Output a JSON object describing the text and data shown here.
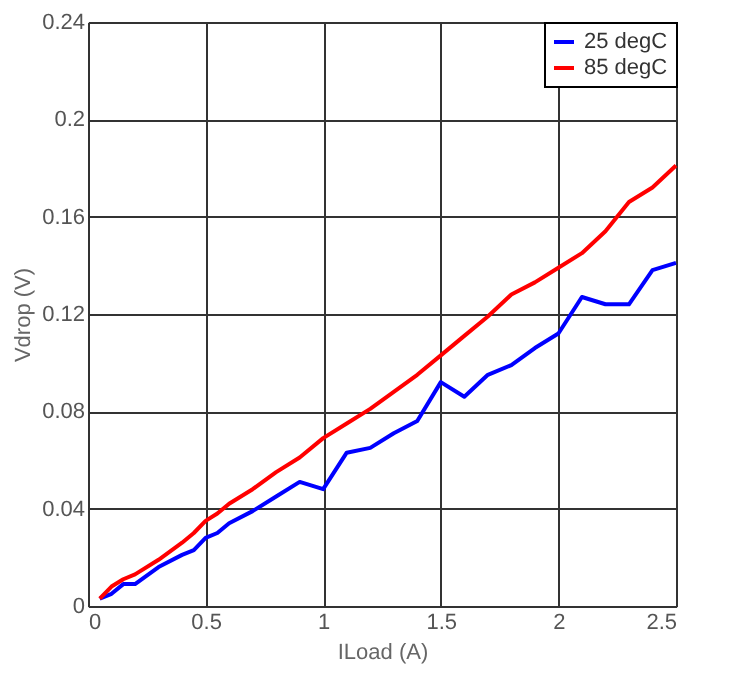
{
  "chart_data": {
    "type": "line",
    "xlabel": "ILoad (A)",
    "ylabel": "Vdrop (V)",
    "x": [
      0.05,
      0.1,
      0.15,
      0.2,
      0.3,
      0.4,
      0.45,
      0.5,
      0.55,
      0.6,
      0.7,
      0.8,
      0.9,
      1.0,
      1.1,
      1.2,
      1.3,
      1.4,
      1.5,
      1.6,
      1.7,
      1.8,
      1.9,
      2.0,
      2.1,
      2.2,
      2.3,
      2.4,
      2.5
    ],
    "series": [
      {
        "name": "25 degC",
        "color": "#0000ff",
        "values": [
          0.003,
          0.005,
          0.009,
          0.009,
          0.016,
          0.021,
          0.023,
          0.028,
          0.03,
          0.034,
          0.039,
          0.045,
          0.051,
          0.048,
          0.063,
          0.065,
          0.071,
          0.076,
          0.092,
          0.086,
          0.095,
          0.099,
          0.106,
          0.112,
          0.127,
          0.124,
          0.124,
          0.138,
          0.141
        ]
      },
      {
        "name": "85 degC",
        "color": "#ff0000",
        "values": [
          0.003,
          0.008,
          0.011,
          0.013,
          0.019,
          0.026,
          0.03,
          0.035,
          0.038,
          0.042,
          0.048,
          0.055,
          0.061,
          0.069,
          0.075,
          0.081,
          0.088,
          0.095,
          0.103,
          0.111,
          0.119,
          0.128,
          0.133,
          0.139,
          0.145,
          0.154,
          0.166,
          0.172,
          0.181
        ]
      }
    ],
    "xlim": [
      0,
      2.5
    ],
    "xticks": [
      0,
      0.5,
      1,
      1.5,
      2,
      2.5
    ],
    "ylim": [
      0,
      0.24
    ],
    "yticks": [
      0,
      0.04,
      0.08,
      0.12,
      0.16,
      0.2,
      0.24
    ],
    "grid": true,
    "legend": "top right",
    "marker": "none",
    "line_style": "solid"
  }
}
